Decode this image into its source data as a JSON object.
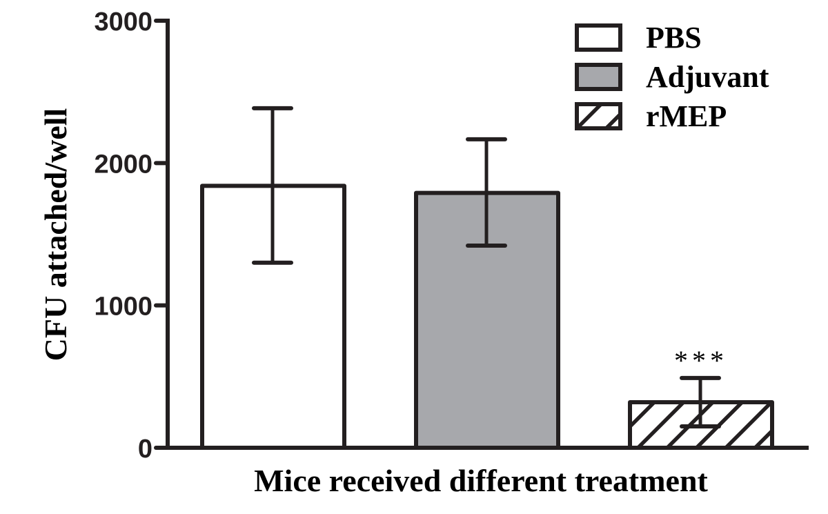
{
  "chart_data": {
    "type": "bar",
    "title": "",
    "xlabel": "Mice received different treatment",
    "ylabel": "CFU attached/well",
    "ylim": [
      0,
      3000
    ],
    "yticks": [
      0,
      1000,
      2000,
      3000
    ],
    "categories": [
      "PBS",
      "Adjuvant",
      "rMEP"
    ],
    "values": [
      1840,
      1790,
      320
    ],
    "error_upper": [
      2385,
      2167,
      490
    ],
    "error_lower": [
      1300,
      1420,
      150
    ],
    "fills": [
      "#ffffff",
      "#a7a8ac",
      "hatch"
    ],
    "annotations": [
      {
        "category": "rMEP",
        "text": "***"
      }
    ],
    "legend": {
      "position": "top-right",
      "entries": [
        "PBS",
        "Adjuvant",
        "rMEP"
      ]
    }
  }
}
